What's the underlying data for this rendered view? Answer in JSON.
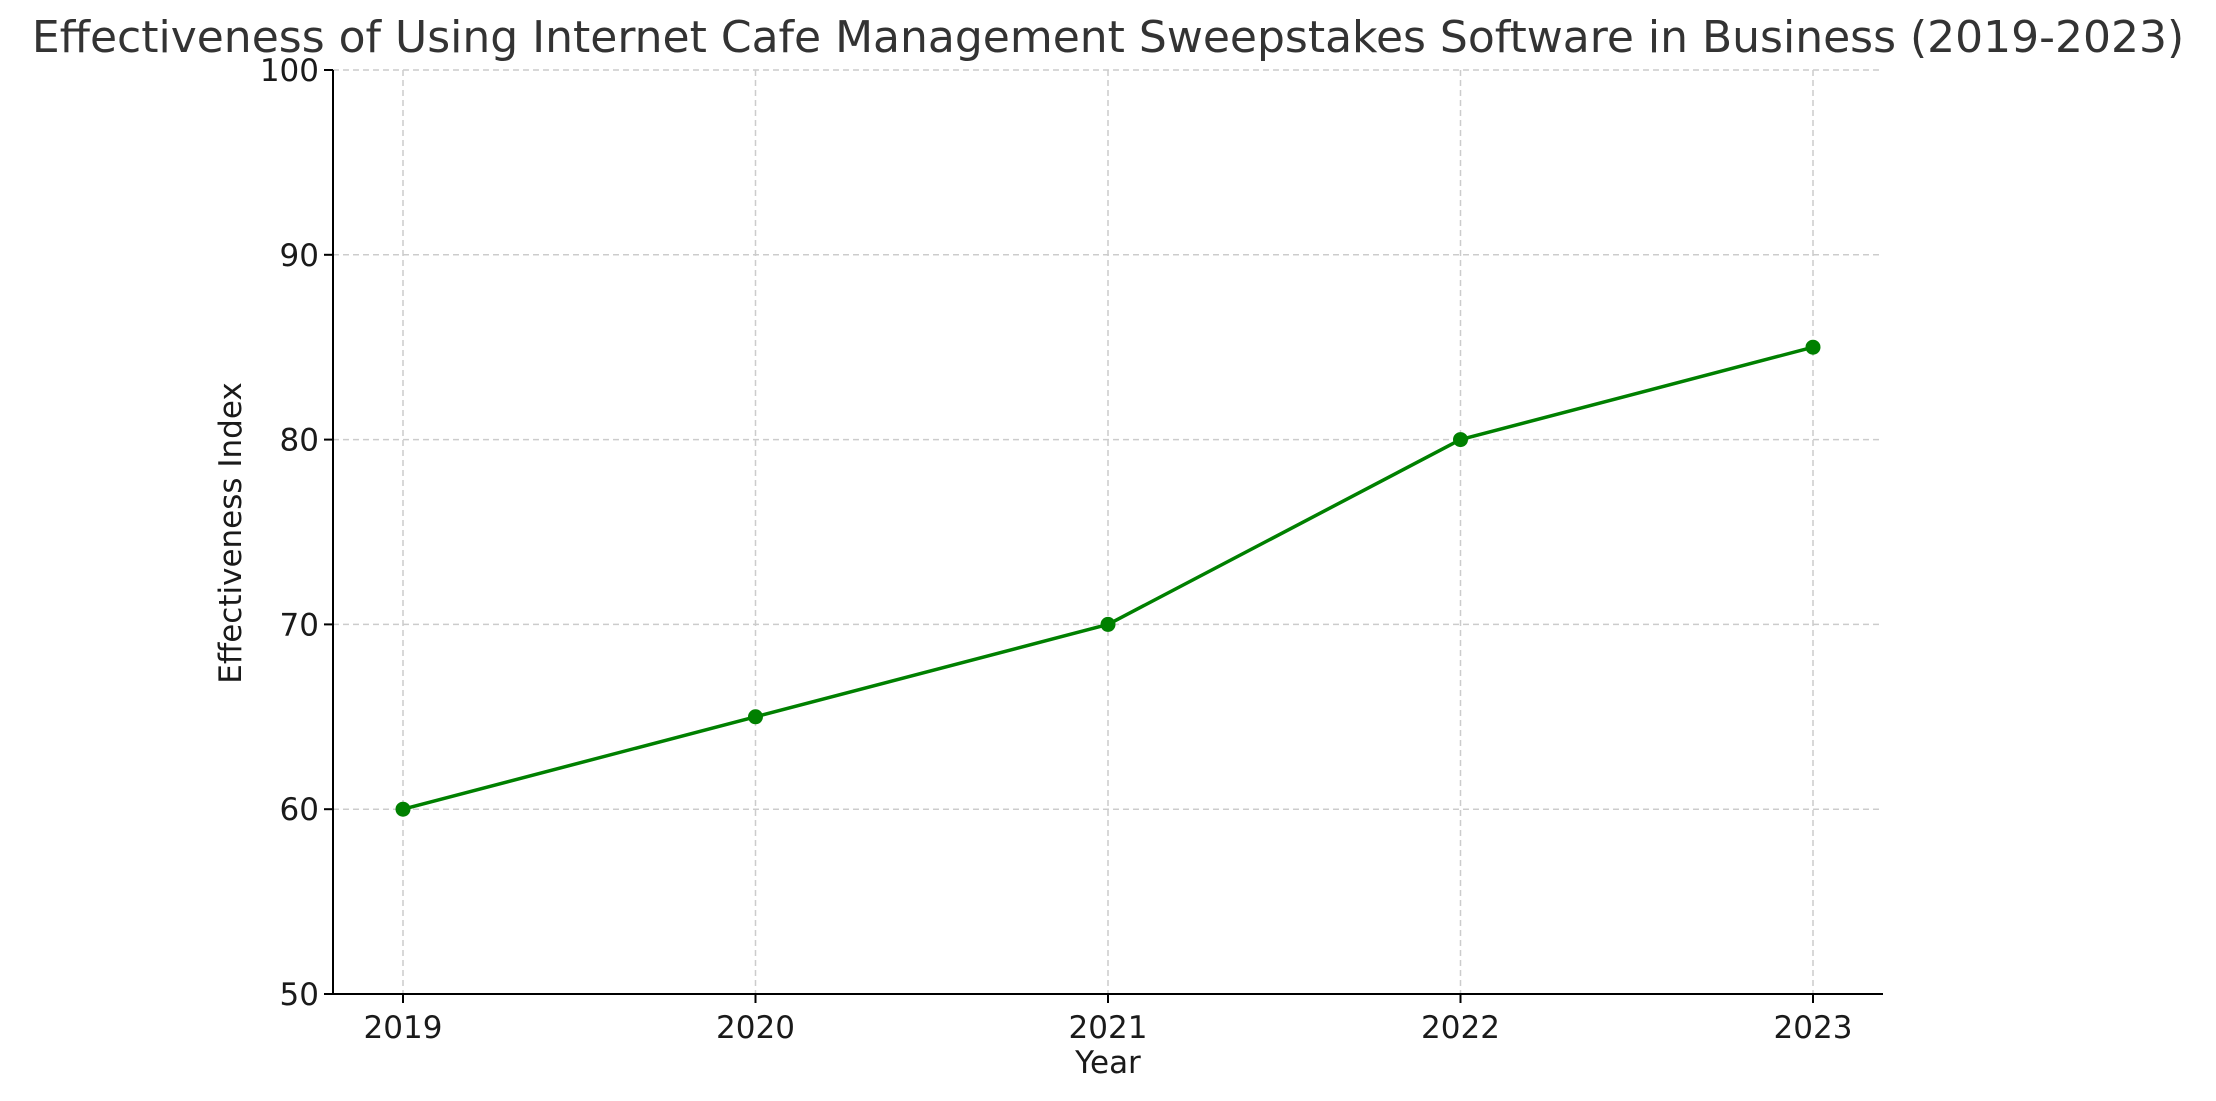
{
  "chart_data": {
    "type": "line",
    "title": "Effectiveness of Using Internet Cafe Management Sweepstakes Software in Business (2019-2023)",
    "xlabel": "Year",
    "ylabel": "Effectiveness Index",
    "x": [
      "2019",
      "2020",
      "2021",
      "2022",
      "2023"
    ],
    "series": [
      {
        "values": [
          60,
          65,
          70,
          80,
          85
        ],
        "color": "#008000",
        "marker": "circle"
      }
    ],
    "ylim": [
      50,
      100
    ],
    "yticks": [
      "50",
      "60",
      "70",
      "80",
      "90",
      "100"
    ],
    "grid": true,
    "grid_style": "dashed",
    "legend": "none"
  }
}
